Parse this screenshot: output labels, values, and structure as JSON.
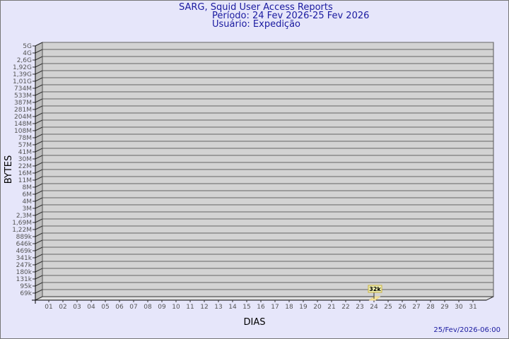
{
  "chart_data": {
    "type": "bar",
    "title": "SARG, Squid User Access Reports",
    "subtitle_period": "Período: 24 Fev 2026-25 Fev 2026",
    "subtitle_user": "Usuário: Expedição",
    "xlabel": "DIAS",
    "ylabel": "BYTES",
    "footer": "25/Fev/2026-06:00",
    "y_scale": "log",
    "y_tick_labels": [
      "5G",
      "4G",
      "2,6G",
      "1,92G",
      "1,39G",
      "1,01G",
      "734M",
      "533M",
      "387M",
      "281M",
      "204M",
      "148M",
      "108M",
      "78M",
      "57M",
      "41M",
      "30M",
      "22M",
      "16M",
      "11M",
      "8M",
      "6M",
      "4M",
      "3M",
      "2,3M",
      "1,69M",
      "1,22M",
      "889k",
      "646k",
      "469k",
      "341k",
      "247k",
      "180k",
      "131k",
      "95k",
      "69k"
    ],
    "categories": [
      "01",
      "02",
      "03",
      "04",
      "05",
      "06",
      "07",
      "08",
      "09",
      "10",
      "11",
      "12",
      "13",
      "14",
      "15",
      "16",
      "17",
      "18",
      "19",
      "20",
      "21",
      "22",
      "23",
      "24",
      "25",
      "26",
      "27",
      "28",
      "29",
      "30",
      "31"
    ],
    "bars": [
      {
        "category": "24",
        "value": "32k",
        "label": "32k"
      }
    ],
    "grid": true,
    "colors": {
      "background": "#e6e6fa",
      "plot": "#d3d3d3",
      "bar": "#f5e6a0",
      "label_box": "#f0f0b0",
      "text": "#1a1aa0"
    }
  }
}
